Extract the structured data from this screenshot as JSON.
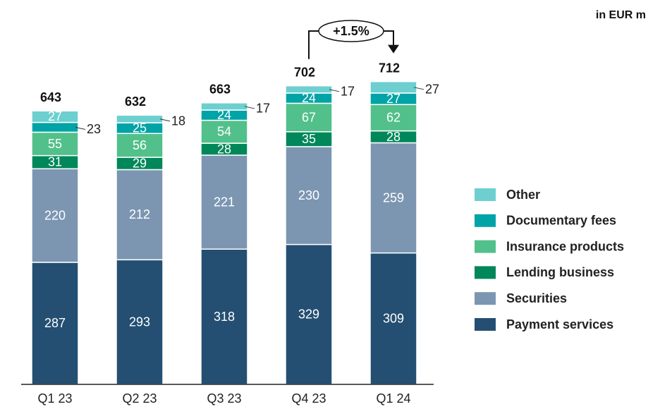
{
  "chart_data": {
    "type": "stacked_bar",
    "unit_label": "in EUR m",
    "categories": [
      "Q1 23",
      "Q2 23",
      "Q3 23",
      "Q4 23",
      "Q1 24"
    ],
    "totals": [
      643,
      632,
      663,
      702,
      712
    ],
    "series": [
      {
        "name": "Payment services",
        "color": "#244f72",
        "values": [
          287,
          293,
          318,
          329,
          309
        ]
      },
      {
        "name": "Securities",
        "color": "#7c96b2",
        "values": [
          220,
          212,
          221,
          230,
          259
        ]
      },
      {
        "name": "Lending business",
        "color": "#00875a",
        "values": [
          31,
          29,
          28,
          35,
          28
        ]
      },
      {
        "name": "Insurance products",
        "color": "#52c08a",
        "values": [
          55,
          56,
          54,
          67,
          62
        ]
      },
      {
        "name": "Documentary fees",
        "color": "#00a3a6",
        "values": [
          23,
          25,
          24,
          24,
          27
        ]
      },
      {
        "name": "Other",
        "color": "#6dcfcf",
        "values": [
          27,
          18,
          17,
          17,
          27
        ]
      }
    ],
    "annotation": "+1.5%"
  }
}
